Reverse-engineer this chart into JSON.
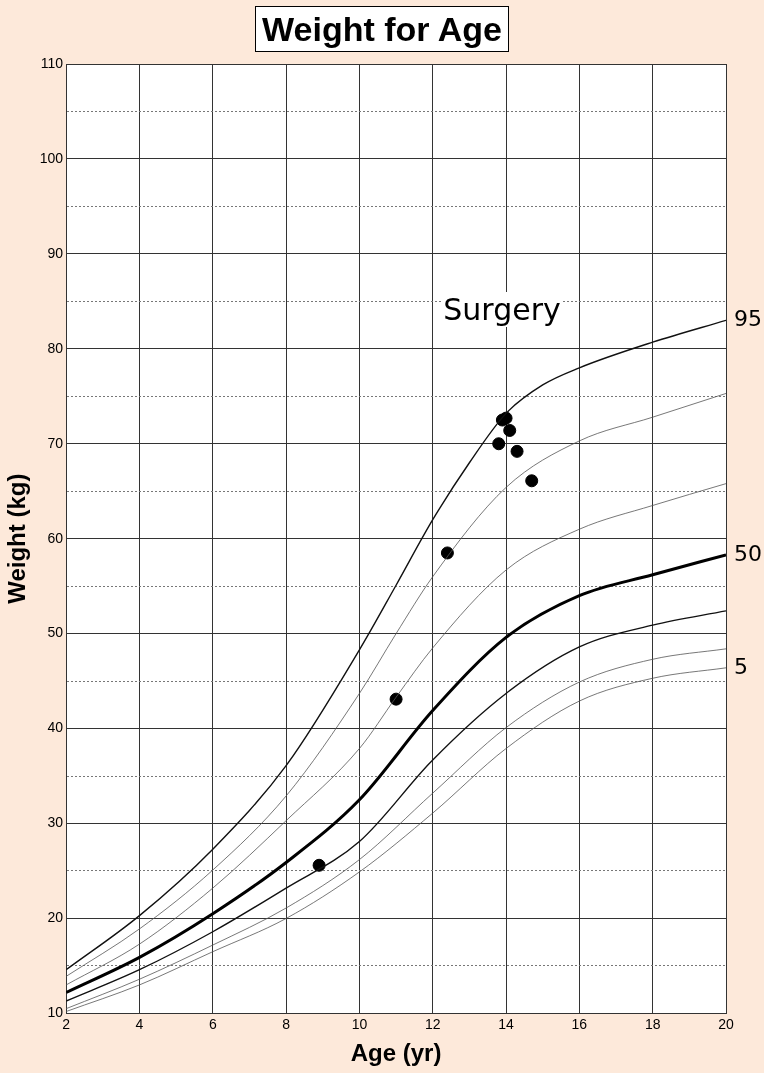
{
  "chart_data": {
    "type": "line",
    "title": "Weight for Age",
    "xlabel": "Age (yr)",
    "ylabel": "Weight (kg)",
    "xlim": [
      2,
      20
    ],
    "xticks": [
      2,
      4,
      6,
      8,
      10,
      12,
      14,
      16,
      18,
      20
    ],
    "ylim": [
      10,
      110
    ],
    "yticks": [
      10,
      {
        "value": 15,
        "label": null
      },
      20,
      {
        "value": 25,
        "label": null
      },
      30,
      {
        "value": 35,
        "label": null
      },
      40,
      {
        "value": 45,
        "label": null
      },
      50,
      {
        "value": 55,
        "label": null
      },
      60,
      {
        "value": 65,
        "label": null
      },
      70,
      {
        "value": 75,
        "label": null
      },
      80,
      {
        "value": 85,
        "label": null
      },
      90,
      {
        "value": 95,
        "label": null
      },
      100,
      {
        "value": 105,
        "label": null
      },
      110
    ],
    "grid": true,
    "legend": false,
    "annotations": [
      "Surgery"
    ],
    "series": [
      {
        "name": "95",
        "color": "#111111",
        "marker": "none",
        "x": [
          2,
          4,
          6,
          8,
          10,
          11,
          12,
          13,
          14,
          15,
          16,
          18,
          20
        ],
        "values": [
          14.6,
          20.3,
          27.3,
          36.1,
          48.3,
          55.1,
          62.0,
          68.0,
          73.2,
          76.2,
          78.0,
          80.7,
          83.0
        ]
      },
      {
        "color": "#555555",
        "marker": "none",
        "x": [
          2,
          4,
          6,
          8,
          10,
          11,
          12,
          14,
          16,
          18,
          20
        ],
        "values": [
          13.9,
          18.9,
          25.1,
          32.9,
          43.7,
          50.0,
          56.0,
          65.4,
          70.3,
          72.8,
          75.3
        ]
      },
      {
        "color": "#555555",
        "marker": "none",
        "x": [
          2,
          4,
          6,
          8,
          10,
          11,
          12,
          14,
          16,
          18,
          20
        ],
        "values": [
          13.0,
          17.3,
          23.2,
          30.3,
          37.9,
          43.3,
          48.5,
          56.7,
          61.0,
          63.5,
          65.8
        ]
      },
      {
        "name": "50",
        "color": "#000000",
        "marker": "none",
        "x": [
          2,
          4,
          6,
          8,
          10,
          12,
          14,
          16,
          18,
          20
        ],
        "values": [
          12.2,
          15.9,
          20.5,
          25.9,
          32.5,
          41.9,
          49.6,
          54.0,
          56.2,
          58.3
        ]
      },
      {
        "color": "#111111",
        "marker": "none",
        "x": [
          2,
          4,
          6,
          8,
          10,
          12,
          14,
          16,
          18,
          20
        ],
        "values": [
          11.3,
          14.6,
          18.6,
          23.2,
          28.1,
          36.7,
          43.7,
          48.6,
          50.9,
          52.4
        ]
      },
      {
        "color": "#555555",
        "marker": "none",
        "x": [
          2,
          4,
          6,
          8,
          10,
          12,
          14,
          16,
          18,
          20
        ],
        "values": [
          10.5,
          13.6,
          17.2,
          21.1,
          26.2,
          33.2,
          40.1,
          44.9,
          47.3,
          48.4
        ]
      },
      {
        "name": "5",
        "color": "#555555",
        "marker": "none",
        "x": [
          2,
          4,
          6,
          8,
          10,
          12,
          14,
          16,
          18,
          20
        ],
        "values": [
          10.2,
          13.0,
          16.5,
          20.0,
          24.9,
          31.1,
          37.9,
          42.9,
          45.3,
          46.4
        ]
      },
      {
        "type": "scatter",
        "color": "#000000",
        "marker": "circle",
        "x": [
          8.9,
          11.0,
          12.4,
          13.8,
          13.9,
          14.0,
          14.1,
          14.3,
          14.7
        ],
        "values": [
          25.6,
          43.1,
          58.5,
          70.0,
          72.5,
          72.7,
          71.4,
          69.2,
          66.1
        ]
      }
    ]
  }
}
